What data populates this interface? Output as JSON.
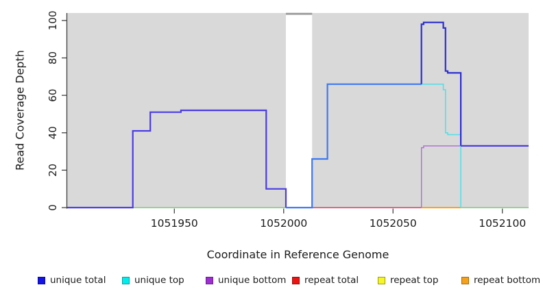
{
  "chart_data": {
    "type": "line",
    "subtype": "step-coverage-plot",
    "title": "",
    "xlabel": "Coordinate in Reference Genome",
    "ylabel": "Read Coverage Depth",
    "xlim": [
      1051901,
      1052112
    ],
    "ylim": [
      0,
      104
    ],
    "xticks": [
      1051950,
      1052000,
      1052050,
      1052100
    ],
    "yticks": [
      0,
      20,
      40,
      60,
      80,
      100
    ],
    "grid": false,
    "plot_bg": "#d9d9d9",
    "axis_color": "#404040",
    "text_color": "#1a1a1a",
    "gap_region": {
      "x0": 1052001,
      "x1": 1052013,
      "cap_color": "#9a9a9a",
      "fill": "#ffffff"
    },
    "lines": [
      {
        "id": "zero-baseline-green",
        "series": "baseline",
        "color": "#7cc57c",
        "width": 1.6,
        "paths": [
          [
            [
              1051931,
              1052001,
              0
            ]
          ],
          [
            [
              1052081,
              1052112,
              0
            ]
          ]
        ]
      },
      {
        "id": "repeat-total-baseline",
        "series": "repeat total",
        "color": "#d23a5a",
        "width": 1.6,
        "paths": [
          [
            [
              1052013,
              1052063,
              0
            ]
          ]
        ]
      },
      {
        "id": "repeat-bottom-baseline",
        "series": "repeat bottom",
        "color": "#ffa011",
        "width": 2,
        "paths": [
          [
            [
              1052063,
              1052081,
              0
            ]
          ]
        ]
      },
      {
        "id": "unique-bottom",
        "series": "unique bottom",
        "color": "#b06ad4",
        "width": 1.4,
        "paths": [
          [
            [
              1052063,
              1052063,
              0
            ],
            [
              1052063,
              1052064,
              32
            ],
            [
              1052064,
              1052112,
              33
            ]
          ]
        ]
      },
      {
        "id": "unique-top",
        "series": "unique top",
        "color": "#52e0e5",
        "width": 1.6,
        "paths": [
          [
            [
              1052063,
              1052073,
              66
            ],
            [
              1052073,
              1052074,
              63
            ],
            [
              1052074,
              1052075,
              40
            ],
            [
              1052075,
              1052081,
              39
            ],
            [
              1052081,
              1052081,
              0
            ]
          ]
        ]
      },
      {
        "id": "unique-total-left",
        "series": "unique total",
        "color": "#4a3be5",
        "width": 2.2,
        "paths": [
          [
            [
              1051901,
              1051931,
              0
            ],
            [
              1051931,
              1051939,
              41
            ],
            [
              1051939,
              1051953,
              51
            ],
            [
              1051953,
              1051992,
              52
            ],
            [
              1051992,
              1052001,
              10
            ],
            [
              1052001,
              1052001,
              0
            ]
          ]
        ]
      },
      {
        "id": "unique-total-gap-and-rise",
        "series": "unique total",
        "color": "#3b78f2",
        "width": 2.2,
        "paths": [
          [
            [
              1052001,
              1052013,
              0
            ],
            [
              1052013,
              1052020,
              26
            ],
            [
              1052020,
              1052063,
              66
            ]
          ]
        ]
      },
      {
        "id": "unique-total-peak",
        "series": "unique total",
        "color": "#2c2cd0",
        "width": 2.2,
        "paths": [
          [
            [
              1052063,
              1052063,
              66
            ],
            [
              1052063,
              1052064,
              98
            ],
            [
              1052064,
              1052073,
              99
            ],
            [
              1052073,
              1052074,
              96
            ],
            [
              1052074,
              1052075,
              73
            ],
            [
              1052075,
              1052081,
              72
            ],
            [
              1052081,
              1052081,
              33
            ]
          ]
        ]
      },
      {
        "id": "unique-total-right-tail",
        "series": "unique total",
        "color": "#4a3be5",
        "width": 2.2,
        "paths": [
          [
            [
              1052081,
              1052112,
              33
            ]
          ]
        ]
      }
    ],
    "legend": {
      "position": "bottom",
      "items": [
        {
          "label": "unique total",
          "fill": "#1414e6",
          "border": "#0b0b99"
        },
        {
          "label": "unique top",
          "fill": "#00eded",
          "border": "#0b9c9c"
        },
        {
          "label": "unique bottom",
          "fill": "#9d2fd1",
          "border": "#6a1f8f"
        },
        {
          "label": "repeat total",
          "fill": "#ec1313",
          "border": "#990b0b"
        },
        {
          "label": "repeat top",
          "fill": "#f6f62a",
          "border": "#9c9c0b"
        },
        {
          "label": "repeat bottom",
          "fill": "#f5a11c",
          "border": "#a86a0a"
        }
      ]
    }
  }
}
